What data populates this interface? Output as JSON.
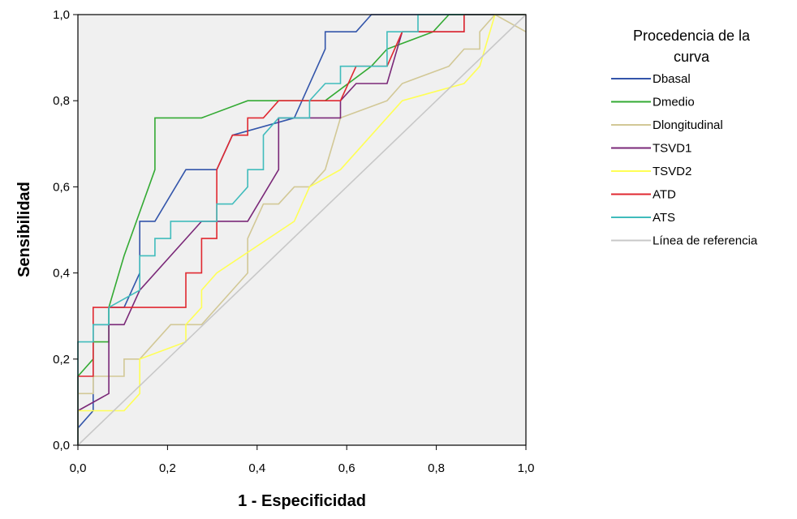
{
  "chart_data": {
    "type": "line",
    "xlabel": "1 - Especificidad",
    "ylabel": "Sensibilidad",
    "xlim": [
      0,
      1
    ],
    "ylim": [
      0,
      1
    ],
    "x_ticks": [
      "0,0",
      "0,2",
      "0,4",
      "0,6",
      "0,8",
      "1,0"
    ],
    "y_ticks": [
      "0,0",
      "0,2",
      "0,4",
      "0,6",
      "0,8",
      "1,0"
    ],
    "grid": false,
    "plot_background": "#f0f0f0",
    "legend": {
      "title_line1": "Procedencia de la",
      "title_line2": "curva",
      "position": "right"
    },
    "series": [
      {
        "name": "Dbasal",
        "color": "#3355aa",
        "points": [
          [
            0,
            0
          ],
          [
            0,
            0.04
          ],
          [
            0.034,
            0.08
          ],
          [
            0.034,
            0.28
          ],
          [
            0.069,
            0.28
          ],
          [
            0.069,
            0.32
          ],
          [
            0.103,
            0.32
          ],
          [
            0.138,
            0.4
          ],
          [
            0.138,
            0.52
          ],
          [
            0.172,
            0.52
          ],
          [
            0.241,
            0.64
          ],
          [
            0.31,
            0.64
          ],
          [
            0.345,
            0.72
          ],
          [
            0.483,
            0.76
          ],
          [
            0.552,
            0.92
          ],
          [
            0.552,
            0.96
          ],
          [
            0.621,
            0.96
          ],
          [
            0.655,
            1
          ],
          [
            1,
            1
          ]
        ]
      },
      {
        "name": "Dmedio",
        "color": "#33aa33",
        "points": [
          [
            0,
            0
          ],
          [
            0,
            0.16
          ],
          [
            0.034,
            0.2
          ],
          [
            0.034,
            0.24
          ],
          [
            0.069,
            0.24
          ],
          [
            0.069,
            0.32
          ],
          [
            0.103,
            0.44
          ],
          [
            0.172,
            0.64
          ],
          [
            0.172,
            0.76
          ],
          [
            0.276,
            0.76
          ],
          [
            0.379,
            0.8
          ],
          [
            0.552,
            0.8
          ],
          [
            0.655,
            0.88
          ],
          [
            0.69,
            0.92
          ],
          [
            0.793,
            0.96
          ],
          [
            0.828,
            1
          ],
          [
            1,
            1
          ]
        ]
      },
      {
        "name": "Dlongitudinal",
        "color": "#d2c896",
        "points": [
          [
            0,
            0
          ],
          [
            0,
            0.12
          ],
          [
            0.034,
            0.12
          ],
          [
            0.034,
            0.16
          ],
          [
            0.103,
            0.16
          ],
          [
            0.103,
            0.2
          ],
          [
            0.138,
            0.2
          ],
          [
            0.207,
            0.28
          ],
          [
            0.276,
            0.28
          ],
          [
            0.379,
            0.4
          ],
          [
            0.379,
            0.48
          ],
          [
            0.414,
            0.56
          ],
          [
            0.448,
            0.56
          ],
          [
            0.483,
            0.6
          ],
          [
            0.517,
            0.6
          ],
          [
            0.552,
            0.64
          ],
          [
            0.586,
            0.76
          ],
          [
            0.69,
            0.8
          ],
          [
            0.724,
            0.84
          ],
          [
            0.828,
            0.88
          ],
          [
            0.862,
            0.92
          ],
          [
            0.897,
            0.92
          ],
          [
            0.897,
            0.96
          ],
          [
            0.931,
            1
          ],
          [
            1,
            0.96
          ]
        ]
      },
      {
        "name": "TSVD1",
        "color": "#7a2878",
        "points": [
          [
            0,
            0
          ],
          [
            0,
            0.08
          ],
          [
            0.069,
            0.12
          ],
          [
            0.069,
            0.28
          ],
          [
            0.103,
            0.28
          ],
          [
            0.138,
            0.36
          ],
          [
            0.276,
            0.52
          ],
          [
            0.379,
            0.52
          ],
          [
            0.448,
            0.64
          ],
          [
            0.448,
            0.76
          ],
          [
            0.586,
            0.76
          ],
          [
            0.586,
            0.8
          ],
          [
            0.621,
            0.84
          ],
          [
            0.69,
            0.84
          ],
          [
            0.724,
            0.96
          ],
          [
            0.862,
            0.96
          ],
          [
            0.862,
            1
          ],
          [
            1,
            1
          ]
        ]
      },
      {
        "name": "TSVD2",
        "color": "#ffff55",
        "points": [
          [
            0,
            0
          ],
          [
            0,
            0.08
          ],
          [
            0.103,
            0.08
          ],
          [
            0.138,
            0.12
          ],
          [
            0.138,
            0.2
          ],
          [
            0.241,
            0.24
          ],
          [
            0.241,
            0.28
          ],
          [
            0.276,
            0.32
          ],
          [
            0.276,
            0.36
          ],
          [
            0.31,
            0.4
          ],
          [
            0.483,
            0.52
          ],
          [
            0.517,
            0.6
          ],
          [
            0.586,
            0.64
          ],
          [
            0.724,
            0.8
          ],
          [
            0.862,
            0.84
          ],
          [
            0.897,
            0.88
          ],
          [
            0.931,
            1
          ],
          [
            1,
            1
          ]
        ]
      },
      {
        "name": "ATD",
        "color": "#e02830",
        "points": [
          [
            0,
            0
          ],
          [
            0,
            0.16
          ],
          [
            0.034,
            0.16
          ],
          [
            0.034,
            0.32
          ],
          [
            0.241,
            0.32
          ],
          [
            0.241,
            0.4
          ],
          [
            0.276,
            0.4
          ],
          [
            0.276,
            0.48
          ],
          [
            0.31,
            0.48
          ],
          [
            0.31,
            0.64
          ],
          [
            0.345,
            0.72
          ],
          [
            0.379,
            0.72
          ],
          [
            0.379,
            0.76
          ],
          [
            0.414,
            0.76
          ],
          [
            0.448,
            0.8
          ],
          [
            0.586,
            0.8
          ],
          [
            0.621,
            0.88
          ],
          [
            0.69,
            0.88
          ],
          [
            0.724,
            0.96
          ],
          [
            0.862,
            0.96
          ],
          [
            0.862,
            1
          ],
          [
            1,
            1
          ]
        ]
      },
      {
        "name": "ATS",
        "color": "#40bcbc",
        "points": [
          [
            0,
            0
          ],
          [
            0,
            0.24
          ],
          [
            0.034,
            0.24
          ],
          [
            0.034,
            0.28
          ],
          [
            0.069,
            0.28
          ],
          [
            0.069,
            0.32
          ],
          [
            0.138,
            0.36
          ],
          [
            0.138,
            0.44
          ],
          [
            0.172,
            0.44
          ],
          [
            0.172,
            0.48
          ],
          [
            0.207,
            0.48
          ],
          [
            0.207,
            0.52
          ],
          [
            0.31,
            0.52
          ],
          [
            0.31,
            0.56
          ],
          [
            0.345,
            0.56
          ],
          [
            0.379,
            0.6
          ],
          [
            0.379,
            0.64
          ],
          [
            0.414,
            0.64
          ],
          [
            0.414,
            0.72
          ],
          [
            0.448,
            0.76
          ],
          [
            0.517,
            0.76
          ],
          [
            0.517,
            0.8
          ],
          [
            0.552,
            0.84
          ],
          [
            0.586,
            0.84
          ],
          [
            0.586,
            0.88
          ],
          [
            0.69,
            0.88
          ],
          [
            0.69,
            0.96
          ],
          [
            0.759,
            0.96
          ],
          [
            0.759,
            1
          ],
          [
            1,
            1
          ]
        ]
      },
      {
        "name": "Línea de referencia",
        "color": "#c8c8c8",
        "points": [
          [
            0,
            0
          ],
          [
            1,
            1
          ]
        ]
      }
    ]
  }
}
